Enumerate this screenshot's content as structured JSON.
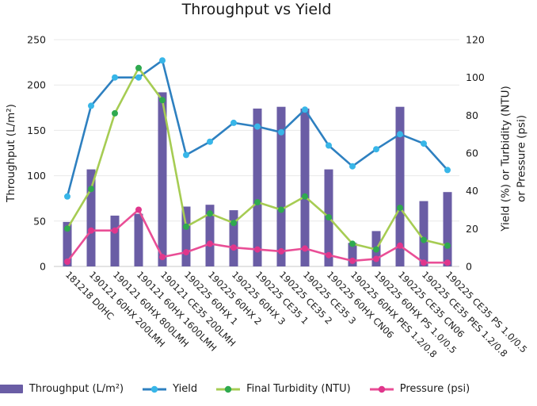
{
  "title": "Throughput vs Yield",
  "chart_data": {
    "type": "bar+line combo",
    "categories": [
      "181218 D0HC",
      "190121 60HX 200LMH",
      "190121 60HX 800LMH",
      "190121 60HX 1600LMH",
      "190121 CE35 200LMH",
      "190225 60HX 1",
      "190225 60HX 2",
      "190225 60HX 3",
      "190225 CE35 1",
      "190225 CE35 2",
      "190225 CE35 3",
      "190225 60HX CN06",
      "190225 60HX PES 1.2/0.8",
      "190225 60HX PS 1.0/0.5",
      "190225 CE35 CN06",
      "190225 CE35 PES 1.2/0.8",
      "190225 CE35 PS 1.0/0.5"
    ],
    "series": [
      {
        "name": "Throughput (L/m²)",
        "type": "bar",
        "axis": "left",
        "color": "#6a5da5",
        "values": [
          49,
          107,
          56,
          58,
          192,
          66,
          68,
          62,
          174,
          176,
          174,
          107,
          26,
          39,
          176,
          72,
          82
        ]
      },
      {
        "name": "Yield",
        "type": "line",
        "axis": "right",
        "color": "#2e80c0",
        "marker_color": "#38b6e8",
        "values": [
          37,
          85,
          100,
          100,
          109,
          59,
          66,
          76,
          74,
          71,
          83,
          64,
          53,
          62,
          70,
          65,
          51
        ]
      },
      {
        "name": "Final Turbidity (NTU)",
        "type": "line",
        "axis": "right",
        "color": "#a6cc53",
        "marker_color": "#2fa94f",
        "values": [
          20,
          41,
          81,
          105,
          88,
          21,
          28,
          23,
          34,
          30,
          37,
          26,
          12,
          9,
          31,
          14,
          11
        ]
      },
      {
        "name": "Pressure (psi)",
        "type": "line",
        "axis": "right",
        "color": "#e94e96",
        "marker_color": "#e0368c",
        "values": [
          2.5,
          19,
          19,
          30,
          5,
          7.5,
          12,
          10,
          9,
          8,
          9.5,
          6,
          3,
          4,
          11,
          2,
          2
        ]
      }
    ],
    "left_axis": {
      "label": "Throughput (L/m²)",
      "min": 0,
      "max": 250,
      "ticks": [
        0,
        50,
        100,
        150,
        200,
        250
      ]
    },
    "right_axis": {
      "label_line1": "Yield (%) or Turbidity (NTU)",
      "label_line2": "or Pressure (psi)",
      "min": 0,
      "max": 120,
      "ticks": [
        0,
        20,
        40,
        60,
        80,
        100,
        120
      ]
    },
    "grid": true,
    "legend_position": "bottom"
  }
}
